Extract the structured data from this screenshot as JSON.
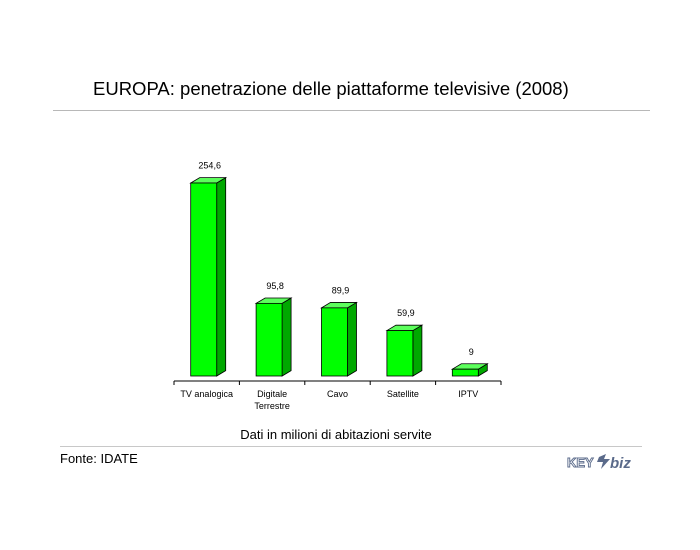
{
  "title": "EUROPA: penetrazione delle piattaforme televisive (2008)",
  "caption": "Dati in milioni di abitazioni servite",
  "source": "Fonte: IDATE",
  "logo": {
    "text_left": "KEY",
    "text_right": "biz"
  },
  "colors": {
    "bar_front": "#00ff00",
    "bar_side": "#00a800",
    "bar_top": "#5cff5c",
    "logo": "#5a6a8a"
  },
  "chart_data": {
    "type": "bar",
    "style": "3d",
    "categories": [
      [
        "TV analogica"
      ],
      [
        "Digitale",
        "Terrestre"
      ],
      [
        "Cavo"
      ],
      [
        "Satellite"
      ],
      [
        "IPTV"
      ]
    ],
    "values": [
      254.6,
      95.8,
      89.9,
      59.9,
      9
    ],
    "data_labels": [
      "254,6",
      "95,8",
      "89,9",
      "59,9",
      "9"
    ],
    "xlabel": "",
    "ylabel": "",
    "grid": false
  }
}
